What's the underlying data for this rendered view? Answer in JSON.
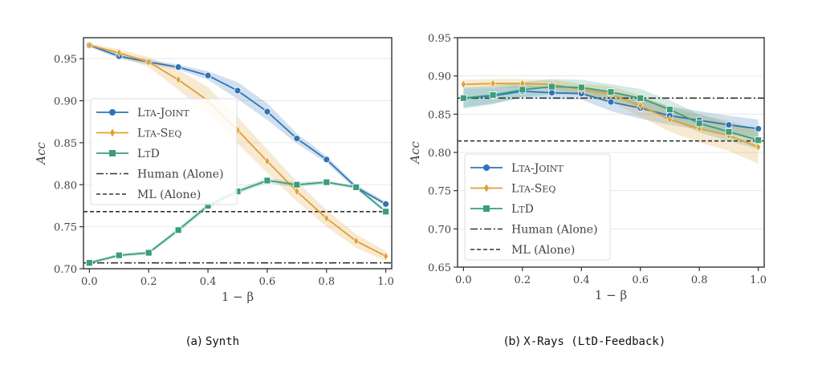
{
  "chart_data": [
    {
      "type": "line",
      "panel": "a",
      "title": "",
      "xlabel": "1 − β",
      "ylabel": "Acc",
      "x": [
        0.0,
        0.1,
        0.2,
        0.3,
        0.4,
        0.5,
        0.6,
        0.7,
        0.8,
        0.9,
        1.0
      ],
      "xlim": [
        -0.02,
        1.02
      ],
      "ylim": [
        0.7,
        0.975
      ],
      "xticks": [
        0.0,
        0.2,
        0.4,
        0.6,
        0.8,
        1.0
      ],
      "xtick_labels": [
        "0.0",
        "0.2",
        "0.4",
        "0.6",
        "0.8",
        "1.0"
      ],
      "yticks": [
        0.7,
        0.75,
        0.8,
        0.85,
        0.9,
        0.95
      ],
      "ytick_labels": [
        "0.70",
        "0.75",
        "0.80",
        "0.85",
        "0.90",
        "0.95"
      ],
      "grid": true,
      "legend_position": "center-left",
      "series": [
        {
          "name": "LtA-Joint",
          "label_main": "L",
          "label_small": "TA",
          "label_rest": "-J",
          "label_small2": "OINT",
          "color": "#2f74b5",
          "marker": "circle",
          "values": [
            0.966,
            0.953,
            0.946,
            0.94,
            0.93,
            0.912,
            0.887,
            0.855,
            0.83,
            0.797,
            0.777
          ],
          "band": [
            0.002,
            0.003,
            0.003,
            0.003,
            0.005,
            0.01,
            0.01,
            0.006,
            0.004,
            0.003,
            0.003
          ]
        },
        {
          "name": "LtA-Seq",
          "label_main": "L",
          "label_small": "TA",
          "label_rest": "-S",
          "label_small2": "EQ",
          "color": "#e0a030",
          "marker": "diamond",
          "values": [
            0.966,
            0.957,
            0.946,
            0.925,
            0.9,
            0.865,
            0.828,
            0.792,
            0.76,
            0.733,
            0.715
          ],
          "band": [
            0.002,
            0.004,
            0.006,
            0.012,
            0.016,
            0.016,
            0.014,
            0.012,
            0.01,
            0.008,
            0.006
          ]
        },
        {
          "name": "LtD",
          "label_main": "L",
          "label_small": "T",
          "label_rest": "D",
          "label_small2": "",
          "color": "#3a9e7a",
          "marker": "square",
          "values": [
            0.707,
            0.716,
            0.719,
            0.746,
            0.775,
            0.792,
            0.805,
            0.8,
            0.803,
            0.797,
            0.768
          ],
          "band": [
            0.002,
            0.002,
            0.002,
            0.003,
            0.003,
            0.003,
            0.003,
            0.003,
            0.002,
            0.002,
            0.002
          ]
        }
      ],
      "reference_lines": [
        {
          "name": "Human (Alone)",
          "value": 0.707,
          "style": "dashdot",
          "color": "#333333"
        },
        {
          "name": "ML (Alone)",
          "value": 0.768,
          "style": "dashed",
          "color": "#333333"
        }
      ]
    },
    {
      "type": "line",
      "panel": "b",
      "title": "",
      "xlabel": "1 − β",
      "ylabel": "Acc",
      "x": [
        0.0,
        0.1,
        0.2,
        0.3,
        0.4,
        0.5,
        0.6,
        0.7,
        0.8,
        0.9,
        1.0
      ],
      "xlim": [
        -0.02,
        1.02
      ],
      "ylim": [
        0.65,
        0.95
      ],
      "xticks": [
        0.0,
        0.2,
        0.4,
        0.6,
        0.8,
        1.0
      ],
      "xtick_labels": [
        "0.0",
        "0.2",
        "0.4",
        "0.6",
        "0.8",
        "1.0"
      ],
      "yticks": [
        0.65,
        0.7,
        0.75,
        0.8,
        0.85,
        0.9,
        0.95
      ],
      "ytick_labels": [
        "0.65",
        "0.70",
        "0.75",
        "0.80",
        "0.85",
        "0.90",
        "0.95"
      ],
      "grid": true,
      "legend_position": "lower-left",
      "series": [
        {
          "name": "LtA-Joint",
          "label_main": "L",
          "label_small": "TA",
          "label_rest": "-J",
          "label_small2": "OINT",
          "color": "#2f74b5",
          "marker": "circle",
          "values": [
            0.871,
            0.874,
            0.88,
            0.878,
            0.877,
            0.866,
            0.858,
            0.848,
            0.842,
            0.836,
            0.831
          ],
          "band": [
            0.012,
            0.01,
            0.008,
            0.008,
            0.008,
            0.012,
            0.014,
            0.012,
            0.012,
            0.012,
            0.012
          ]
        },
        {
          "name": "LtA-Seq",
          "label_main": "L",
          "label_small": "TA",
          "label_rest": "-S",
          "label_small2": "EQ",
          "color": "#e0a030",
          "marker": "diamond",
          "values": [
            0.889,
            0.89,
            0.89,
            0.889,
            0.882,
            0.876,
            0.861,
            0.843,
            0.831,
            0.822,
            0.807
          ],
          "band": [
            0.006,
            0.006,
            0.006,
            0.006,
            0.008,
            0.01,
            0.014,
            0.016,
            0.018,
            0.02,
            0.022
          ]
        },
        {
          "name": "LtD",
          "label_main": "L",
          "label_small": "T",
          "label_rest": "D",
          "label_small2": "",
          "color": "#3a9e7a",
          "marker": "square",
          "values": [
            0.871,
            0.875,
            0.882,
            0.886,
            0.885,
            0.879,
            0.871,
            0.856,
            0.838,
            0.827,
            0.816
          ],
          "band": [
            0.014,
            0.012,
            0.01,
            0.01,
            0.01,
            0.01,
            0.012,
            0.012,
            0.012,
            0.012,
            0.012
          ]
        }
      ],
      "reference_lines": [
        {
          "name": "Human (Alone)",
          "value": 0.871,
          "style": "dashdot",
          "color": "#333333"
        },
        {
          "name": "ML (Alone)",
          "value": 0.815,
          "style": "dashed",
          "color": "#333333"
        }
      ]
    }
  ],
  "captions": {
    "a": {
      "prefix": "(a) ",
      "name": "Synth"
    },
    "b": {
      "prefix": "(b) ",
      "name": "X-Rays",
      "paren_open": " (",
      "sub": "LtD-Feedback",
      "paren_close": ")"
    }
  }
}
